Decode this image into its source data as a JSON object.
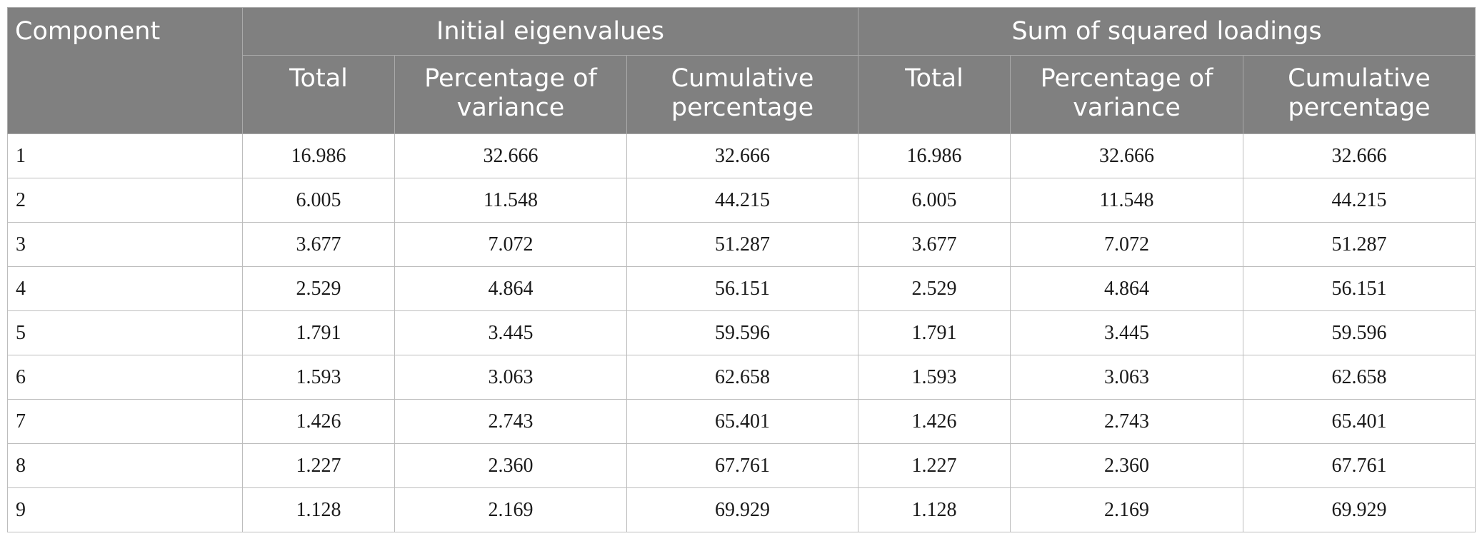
{
  "table": {
    "header": {
      "component": "Component",
      "group_initial": "Initial eigenvalues",
      "group_sum": "Sum of squared loadings",
      "sub_initial": [
        "Total",
        "Percentage of variance",
        "Cumulative percentage"
      ],
      "sub_sum": [
        "Total",
        "Percentage of variance",
        "Cumulative percentage"
      ]
    },
    "rows": [
      [
        "1",
        "16.986",
        "32.666",
        "32.666",
        "16.986",
        "32.666",
        "32.666"
      ],
      [
        "2",
        "6.005",
        "11.548",
        "44.215",
        "6.005",
        "11.548",
        "44.215"
      ],
      [
        "3",
        "3.677",
        "7.072",
        "51.287",
        "3.677",
        "7.072",
        "51.287"
      ],
      [
        "4",
        "2.529",
        "4.864",
        "56.151",
        "2.529",
        "4.864",
        "56.151"
      ],
      [
        "5",
        "1.791",
        "3.445",
        "59.596",
        "1.791",
        "3.445",
        "59.596"
      ],
      [
        "6",
        "1.593",
        "3.063",
        "62.658",
        "1.593",
        "3.063",
        "62.658"
      ],
      [
        "7",
        "1.426",
        "2.743",
        "65.401",
        "1.426",
        "2.743",
        "65.401"
      ],
      [
        "8",
        "1.227",
        "2.360",
        "67.761",
        "1.227",
        "2.360",
        "67.761"
      ],
      [
        "9",
        "1.128",
        "2.169",
        "69.929",
        "1.128",
        "2.169",
        "69.929"
      ]
    ]
  }
}
